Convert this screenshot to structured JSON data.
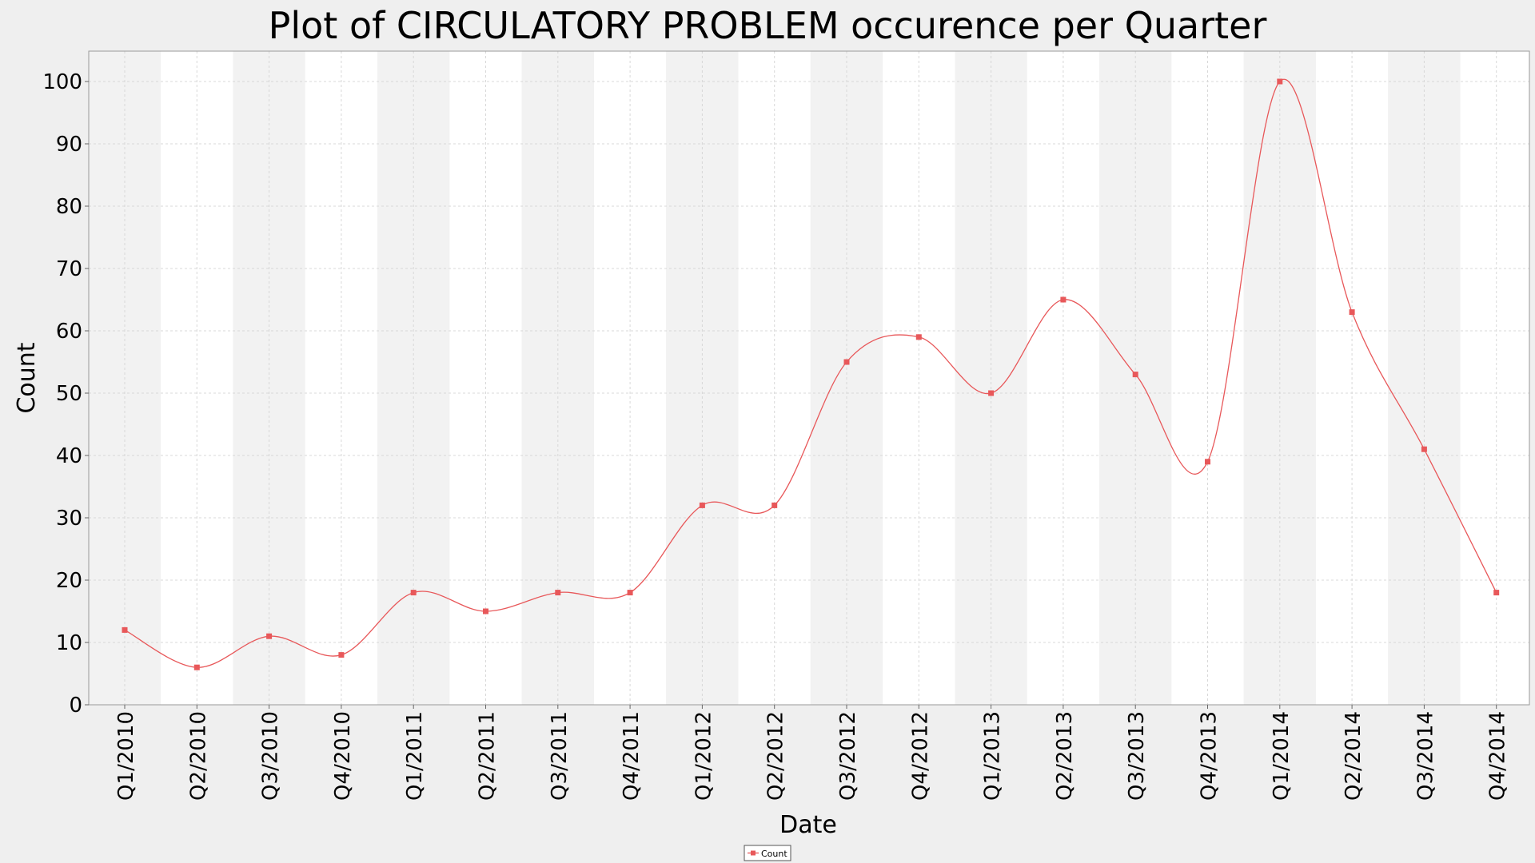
{
  "chart_data": {
    "type": "line",
    "title": "Plot of CIRCULATORY PROBLEM occurence per Quarter",
    "xlabel": "Date",
    "ylabel": "Count",
    "categories": [
      "Q1/2010",
      "Q2/2010",
      "Q3/2010",
      "Q4/2010",
      "Q1/2011",
      "Q2/2011",
      "Q3/2011",
      "Q4/2011",
      "Q1/2012",
      "Q2/2012",
      "Q3/2012",
      "Q4/2012",
      "Q1/2013",
      "Q2/2013",
      "Q3/2013",
      "Q4/2013",
      "Q1/2014",
      "Q2/2014",
      "Q3/2014",
      "Q4/2014"
    ],
    "series": [
      {
        "name": "Count",
        "values": [
          12,
          6,
          11,
          8,
          18,
          15,
          18,
          18,
          32,
          32,
          55,
          59,
          50,
          65,
          53,
          39,
          100,
          63,
          41,
          18
        ]
      }
    ],
    "ylim": [
      0,
      105
    ],
    "yticks": [
      0,
      10,
      20,
      30,
      40,
      50,
      60,
      70,
      80,
      90,
      100
    ],
    "grid": true,
    "legend_position": "bottom-center",
    "series_color": "#e8585a",
    "band_color": "#f2f2f2"
  }
}
